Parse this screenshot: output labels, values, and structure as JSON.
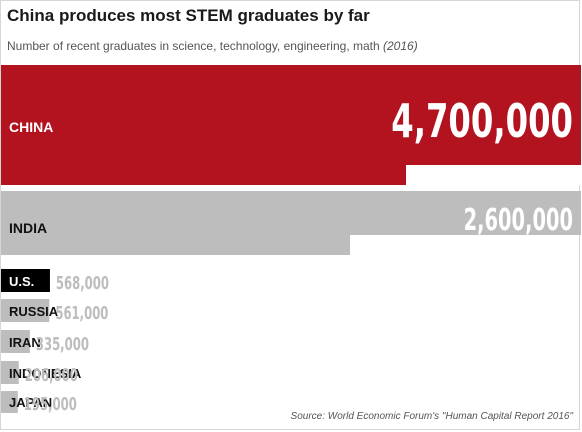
{
  "title": "China produces most STEM graduates by far",
  "subtitle": "Number of recent graduates in science, technology, engineering, math",
  "subtitle_year": "(2016)",
  "source": "Source: World Economic Forum's \"Human Capital Report 2016\"",
  "colors": {
    "china": "#b3121f",
    "us": "#000000",
    "other": "#bdbdbd",
    "value_other": "#bdbdbd",
    "value_highlight": "#ffffff"
  },
  "chart_data": {
    "type": "bar",
    "orientation": "horizontal",
    "title": "China produces most STEM graduates by far",
    "subtitle": "Number of recent graduates in science, technology, engineering, math (2016)",
    "categories": [
      "CHINA",
      "INDIA",
      "U.S.",
      "RUSSIA",
      "IRAN",
      "INDONESIA",
      "JAPAN"
    ],
    "values": [
      4700000,
      2600000,
      568000,
      561000,
      335000,
      206000,
      195000
    ],
    "value_labels": [
      "4,700,000",
      "2,600,000",
      "568,000",
      "561,000",
      "335,000",
      "206,000",
      "195,000"
    ],
    "grid": false,
    "legend": "none"
  }
}
